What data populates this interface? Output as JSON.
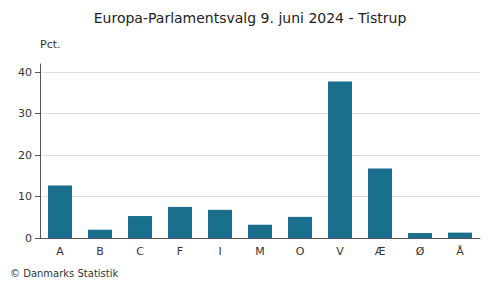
{
  "chart_data": {
    "type": "bar",
    "title": "Europa-Parlamentsvalg 9. juni 2024 - Tistrup",
    "ylabel": "Pct.",
    "footer": "© Danmarks Statistik",
    "categories": [
      "A",
      "B",
      "C",
      "F",
      "I",
      "M",
      "O",
      "V",
      "Æ",
      "Ø",
      "Å"
    ],
    "values": [
      12.7,
      2.0,
      5.3,
      7.5,
      6.8,
      3.2,
      5.1,
      37.8,
      16.8,
      1.2,
      1.3
    ],
    "color": "#1a6e8e",
    "ylim": [
      0,
      42
    ],
    "yticks": [
      0,
      10,
      20,
      30,
      40
    ],
    "grid": true
  }
}
